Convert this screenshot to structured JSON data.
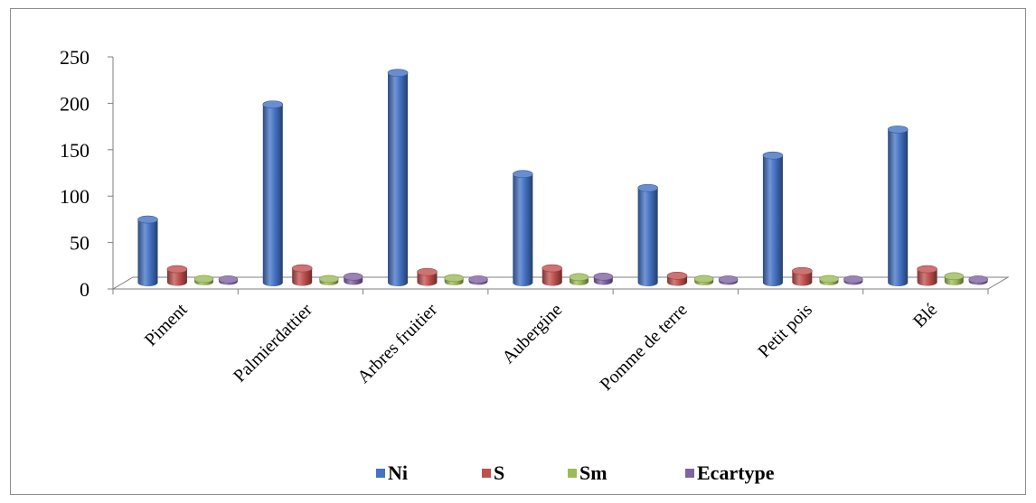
{
  "chart_data": {
    "type": "bar",
    "style": "3d-cylinder",
    "categories": [
      "Piment",
      "Palmierdattier",
      "Arbres fruitier",
      "Aubergine",
      "Pomme de terre",
      "Petit pois",
      "Blé"
    ],
    "series": [
      {
        "name": "Ni",
        "color": "#4472C4",
        "values": [
          68,
          192,
          226,
          117,
          102,
          137,
          165
        ]
      },
      {
        "name": "S",
        "color": "#C0504D",
        "values": [
          14,
          15,
          11,
          15,
          7,
          12,
          14
        ]
      },
      {
        "name": "Sm",
        "color": "#9BBB59",
        "values": [
          3,
          3,
          4,
          5,
          3,
          3,
          6
        ]
      },
      {
        "name": "Ecartype",
        "color": "#8064A2",
        "values": [
          2,
          5,
          2,
          5,
          2,
          2,
          2
        ]
      }
    ],
    "y_ticks": [
      "0",
      "50",
      "100",
      "150",
      "200",
      "250"
    ],
    "ylim": [
      0,
      250
    ],
    "title": "",
    "xlabel": "",
    "ylabel": "",
    "grid": false,
    "legend_position": "bottom"
  }
}
